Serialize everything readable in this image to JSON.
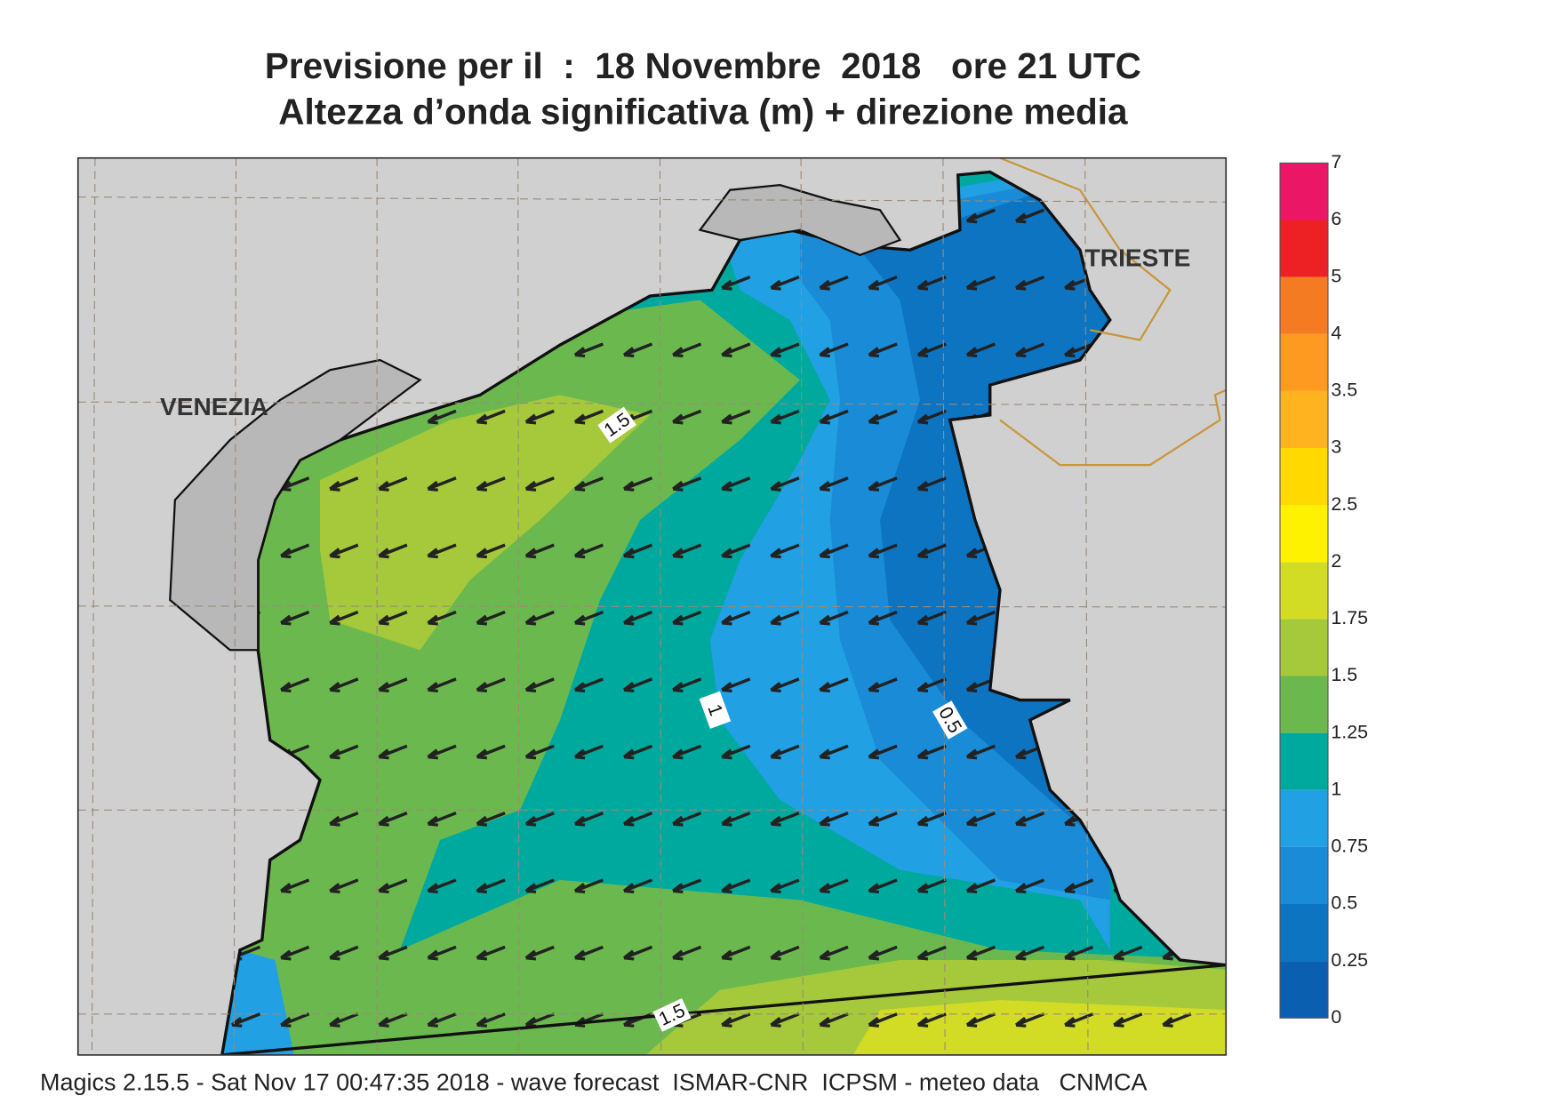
{
  "header": {
    "title_line1": "Previsione per il  :  18 Novembre  2018   ore 21 UTC",
    "title_line2": "Altezza d’onda significativa (m) + direzione media"
  },
  "map": {
    "place_labels": [
      "VENEZIA",
      "TRIESTE"
    ],
    "contour_labels": [
      "1.5",
      "1",
      "0.5",
      "1.5"
    ]
  },
  "colorbar": {
    "ticks": [
      "0",
      "0.25",
      "0.5",
      "0.75",
      "1",
      "1.25",
      "1.5",
      "1.75",
      "2",
      "2.5",
      "3",
      "3.5",
      "4",
      "5",
      "6",
      "7"
    ],
    "colors": [
      "#0a5fb0",
      "#0d74c2",
      "#1a8bd6",
      "#21a0e4",
      "#00a99d",
      "#6bb94e",
      "#a5c93a",
      "#d3dc25",
      "#fff200",
      "#ffd900",
      "#ffb31e",
      "#ff9a20",
      "#f47b21",
      "#ed2024",
      "#ec1667"
    ]
  },
  "footer": "Magics 2.15.5 - Sat Nov 17 00:47:35 2018 - wave forecast  ISMAR-CNR  ICPSM - meteo data   CNMCA"
}
